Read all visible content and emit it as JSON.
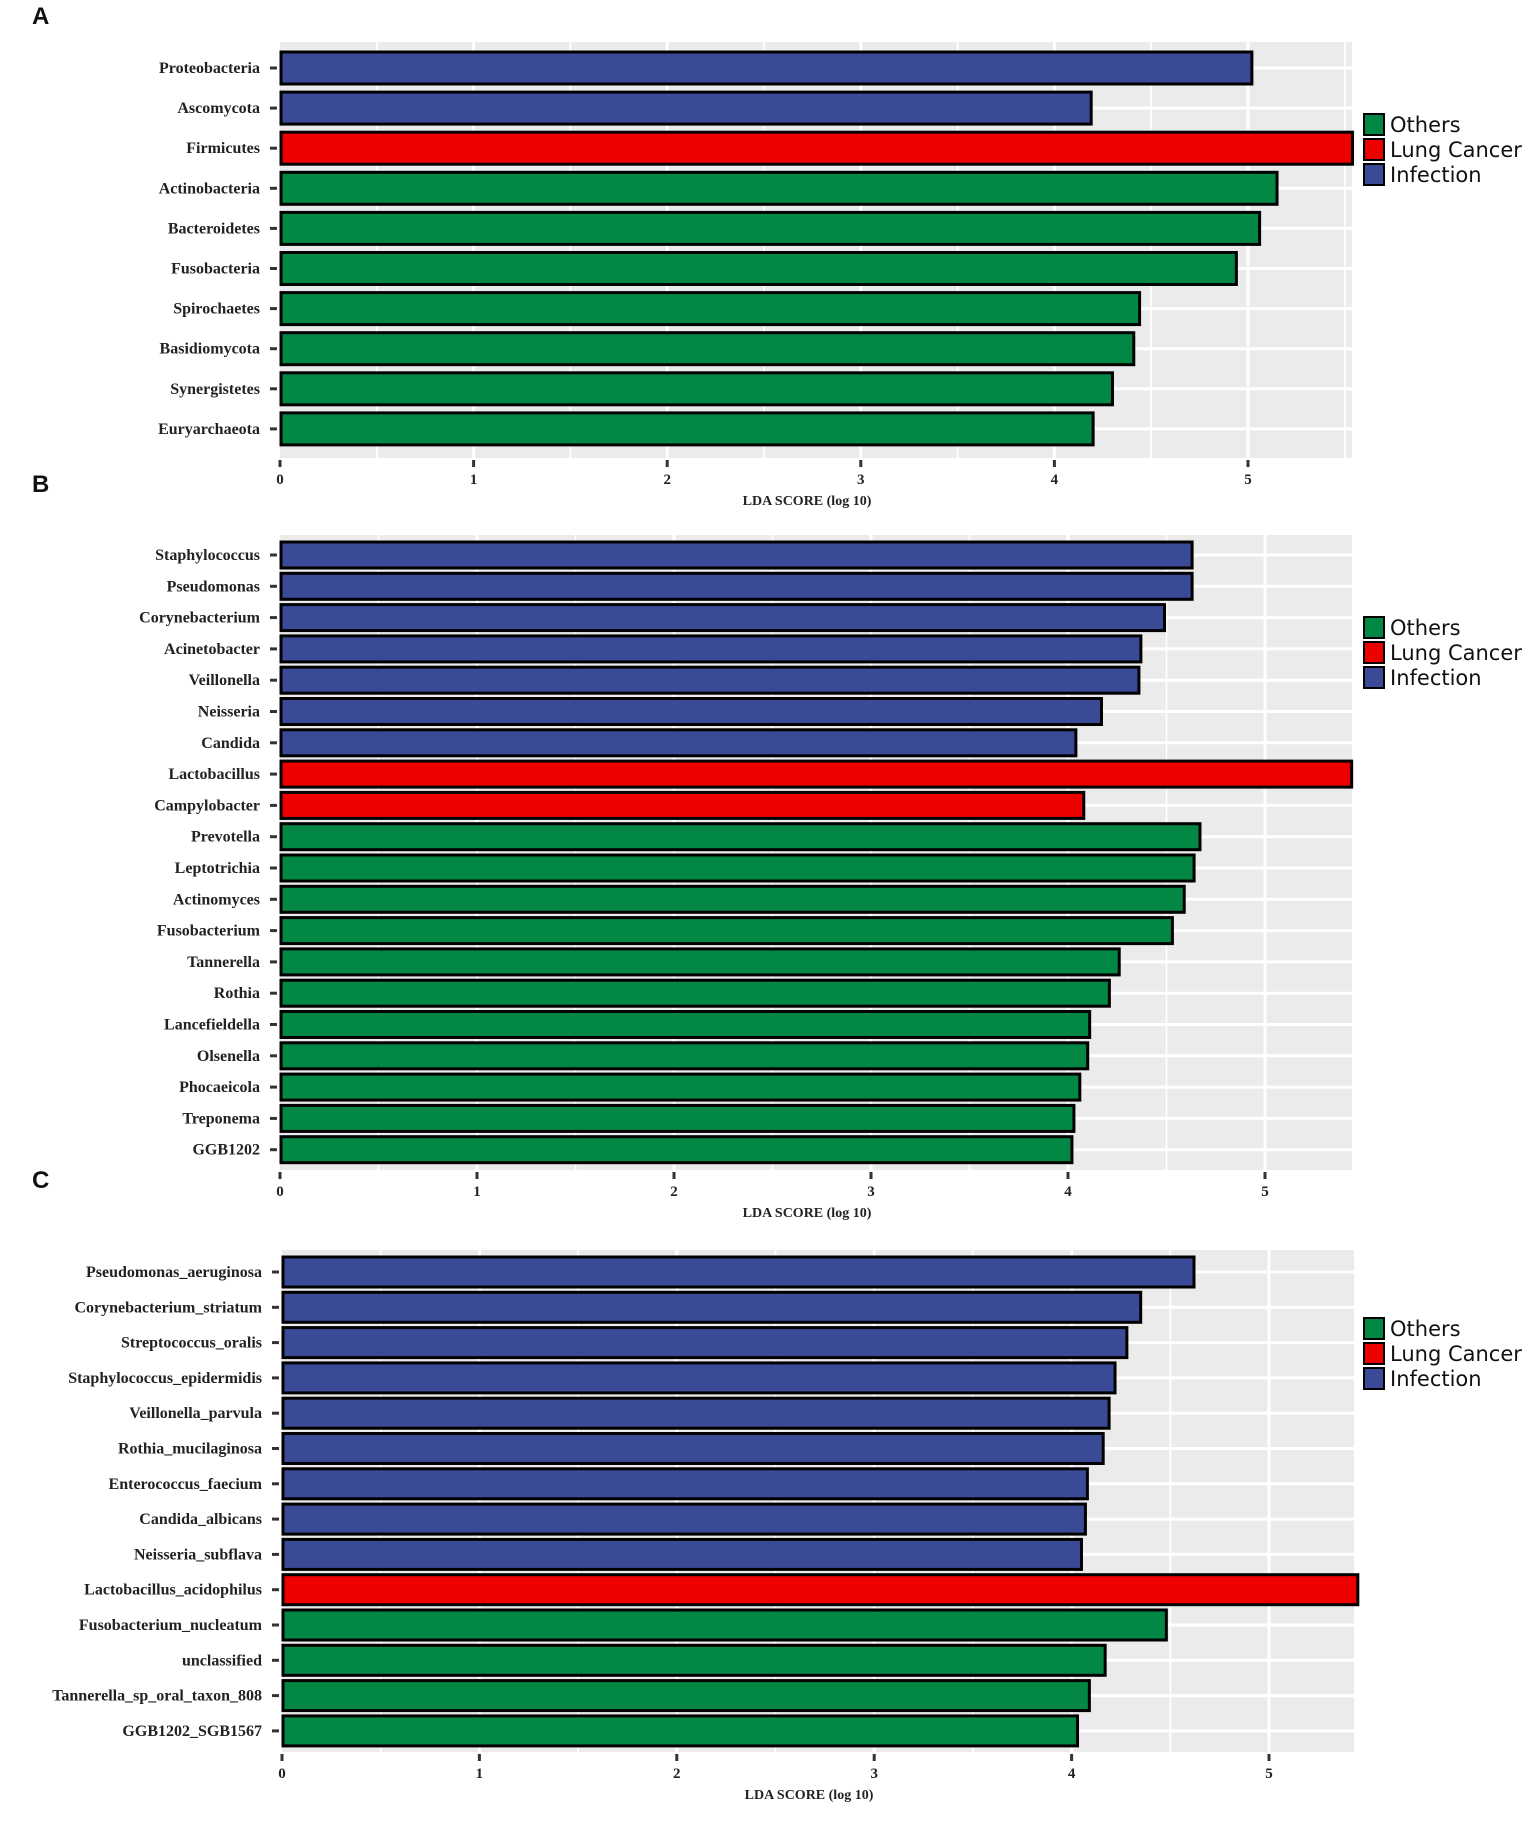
{
  "colors": {
    "Others": "#038745",
    "Lung Cancer": "#EE0000",
    "Infection": "#3B4A96",
    "panel_bg": "#EBEBEB",
    "grid": "#FFFFFF"
  },
  "legend": {
    "items": [
      {
        "label": "Others",
        "color": "#038745"
      },
      {
        "label": "Lung Cancer",
        "color": "#EE0000"
      },
      {
        "label": "Infection",
        "color": "#3B4A96"
      }
    ]
  },
  "chart_data": [
    {
      "panel": "A",
      "type": "bar",
      "orientation": "horizontal",
      "xlabel": "LDA SCORE (log 10)",
      "xlim": [
        0,
        5.55
      ],
      "xticks": [
        "0",
        "1",
        "2",
        "3",
        "4",
        "5"
      ],
      "categories": [
        "Proteobacteria",
        "Ascomycota",
        "Firmicutes",
        "Actinobacteria",
        "Bacteroidetes",
        "Fusobacteria",
        "Spirochaetes",
        "Basidiomycota",
        "Synergistetes",
        "Euryarchaeota"
      ],
      "values": [
        5.02,
        4.19,
        5.54,
        5.15,
        5.06,
        4.94,
        4.44,
        4.41,
        4.3,
        4.2
      ],
      "groups": [
        "Infection",
        "Infection",
        "Lung Cancer",
        "Others",
        "Others",
        "Others",
        "Others",
        "Others",
        "Others",
        "Others"
      ]
    },
    {
      "panel": "B",
      "type": "bar",
      "orientation": "horizontal",
      "xlabel": "LDA SCORE (log 10)",
      "xlim": [
        0,
        5.45
      ],
      "xticks": [
        "0",
        "1",
        "2",
        "3",
        "4",
        "5"
      ],
      "categories": [
        "Staphylococcus",
        "Pseudomonas",
        "Corynebacterium",
        "Acinetobacter",
        "Veillonella",
        "Neisseria",
        "Candida",
        "Lactobacillus",
        "Campylobacter",
        "Prevotella",
        "Leptotrichia",
        "Actinomyces",
        "Fusobacterium",
        "Tannerella",
        "Rothia",
        "Lancefieldella",
        "Olsenella",
        "Phocaeicola",
        "Treponema",
        "GGB1202"
      ],
      "values": [
        4.63,
        4.63,
        4.49,
        4.37,
        4.36,
        4.17,
        4.04,
        5.44,
        4.08,
        4.67,
        4.64,
        4.59,
        4.53,
        4.26,
        4.21,
        4.11,
        4.1,
        4.06,
        4.03,
        4.02
      ],
      "groups": [
        "Infection",
        "Infection",
        "Infection",
        "Infection",
        "Infection",
        "Infection",
        "Infection",
        "Lung Cancer",
        "Lung Cancer",
        "Others",
        "Others",
        "Others",
        "Others",
        "Others",
        "Others",
        "Others",
        "Others",
        "Others",
        "Others",
        "Others"
      ]
    },
    {
      "panel": "C",
      "type": "bar",
      "orientation": "horizontal",
      "xlabel": "LDA SCORE (log 10)",
      "xlim": [
        0,
        5.45
      ],
      "xticks": [
        "0",
        "1",
        "2",
        "3",
        "4",
        "5"
      ],
      "categories": [
        "Pseudomonas_aeruginosa",
        "Corynebacterium_striatum",
        "Streptococcus_oralis",
        "Staphylococcus_epidermidis",
        "Veillonella_parvula",
        "Rothia_mucilaginosa",
        "Enterococcus_faecium",
        "Candida_albicans",
        "Neisseria_subflava",
        "Lactobacillus_acidophilus",
        "Fusobacterium_nucleatum",
        "unclassified",
        "Tannerella_sp_oral_taxon_808",
        "GGB1202_SGB1567"
      ],
      "values": [
        4.62,
        4.35,
        4.28,
        4.22,
        4.19,
        4.16,
        4.08,
        4.07,
        4.05,
        5.45,
        4.48,
        4.17,
        4.09,
        4.03
      ],
      "groups": [
        "Infection",
        "Infection",
        "Infection",
        "Infection",
        "Infection",
        "Infection",
        "Infection",
        "Infection",
        "Infection",
        "Lung Cancer",
        "Others",
        "Others",
        "Others",
        "Others"
      ]
    }
  ]
}
